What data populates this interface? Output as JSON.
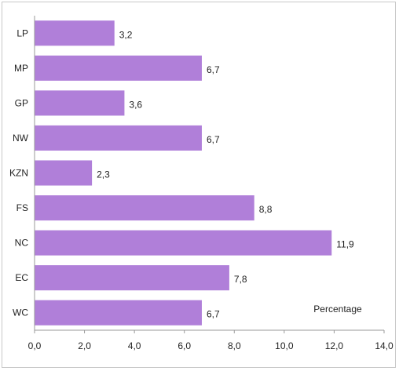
{
  "chart_data": {
    "type": "bar",
    "orientation": "horizontal",
    "categories": [
      "LP",
      "MP",
      "GP",
      "NW",
      "KZN",
      "FS",
      "NC",
      "EC",
      "WC"
    ],
    "values": [
      3.2,
      6.7,
      3.6,
      6.7,
      2.3,
      8.8,
      11.9,
      7.8,
      6.7
    ],
    "data_labels": [
      "3,2",
      "6,7",
      "3,6",
      "6,7",
      "2,3",
      "8,8",
      "11,9",
      "7,8",
      "6,7"
    ],
    "xlim": [
      0,
      14
    ],
    "x_ticks": [
      0,
      2,
      4,
      6,
      8,
      10,
      12,
      14
    ],
    "x_tick_labels": [
      "0,0",
      "2,0",
      "4,0",
      "6,0",
      "8,0",
      "10,0",
      "12,0",
      "14,0"
    ],
    "xlabel": "Percentage",
    "title": "",
    "grid": false,
    "bar_color": "#b07fd9"
  }
}
